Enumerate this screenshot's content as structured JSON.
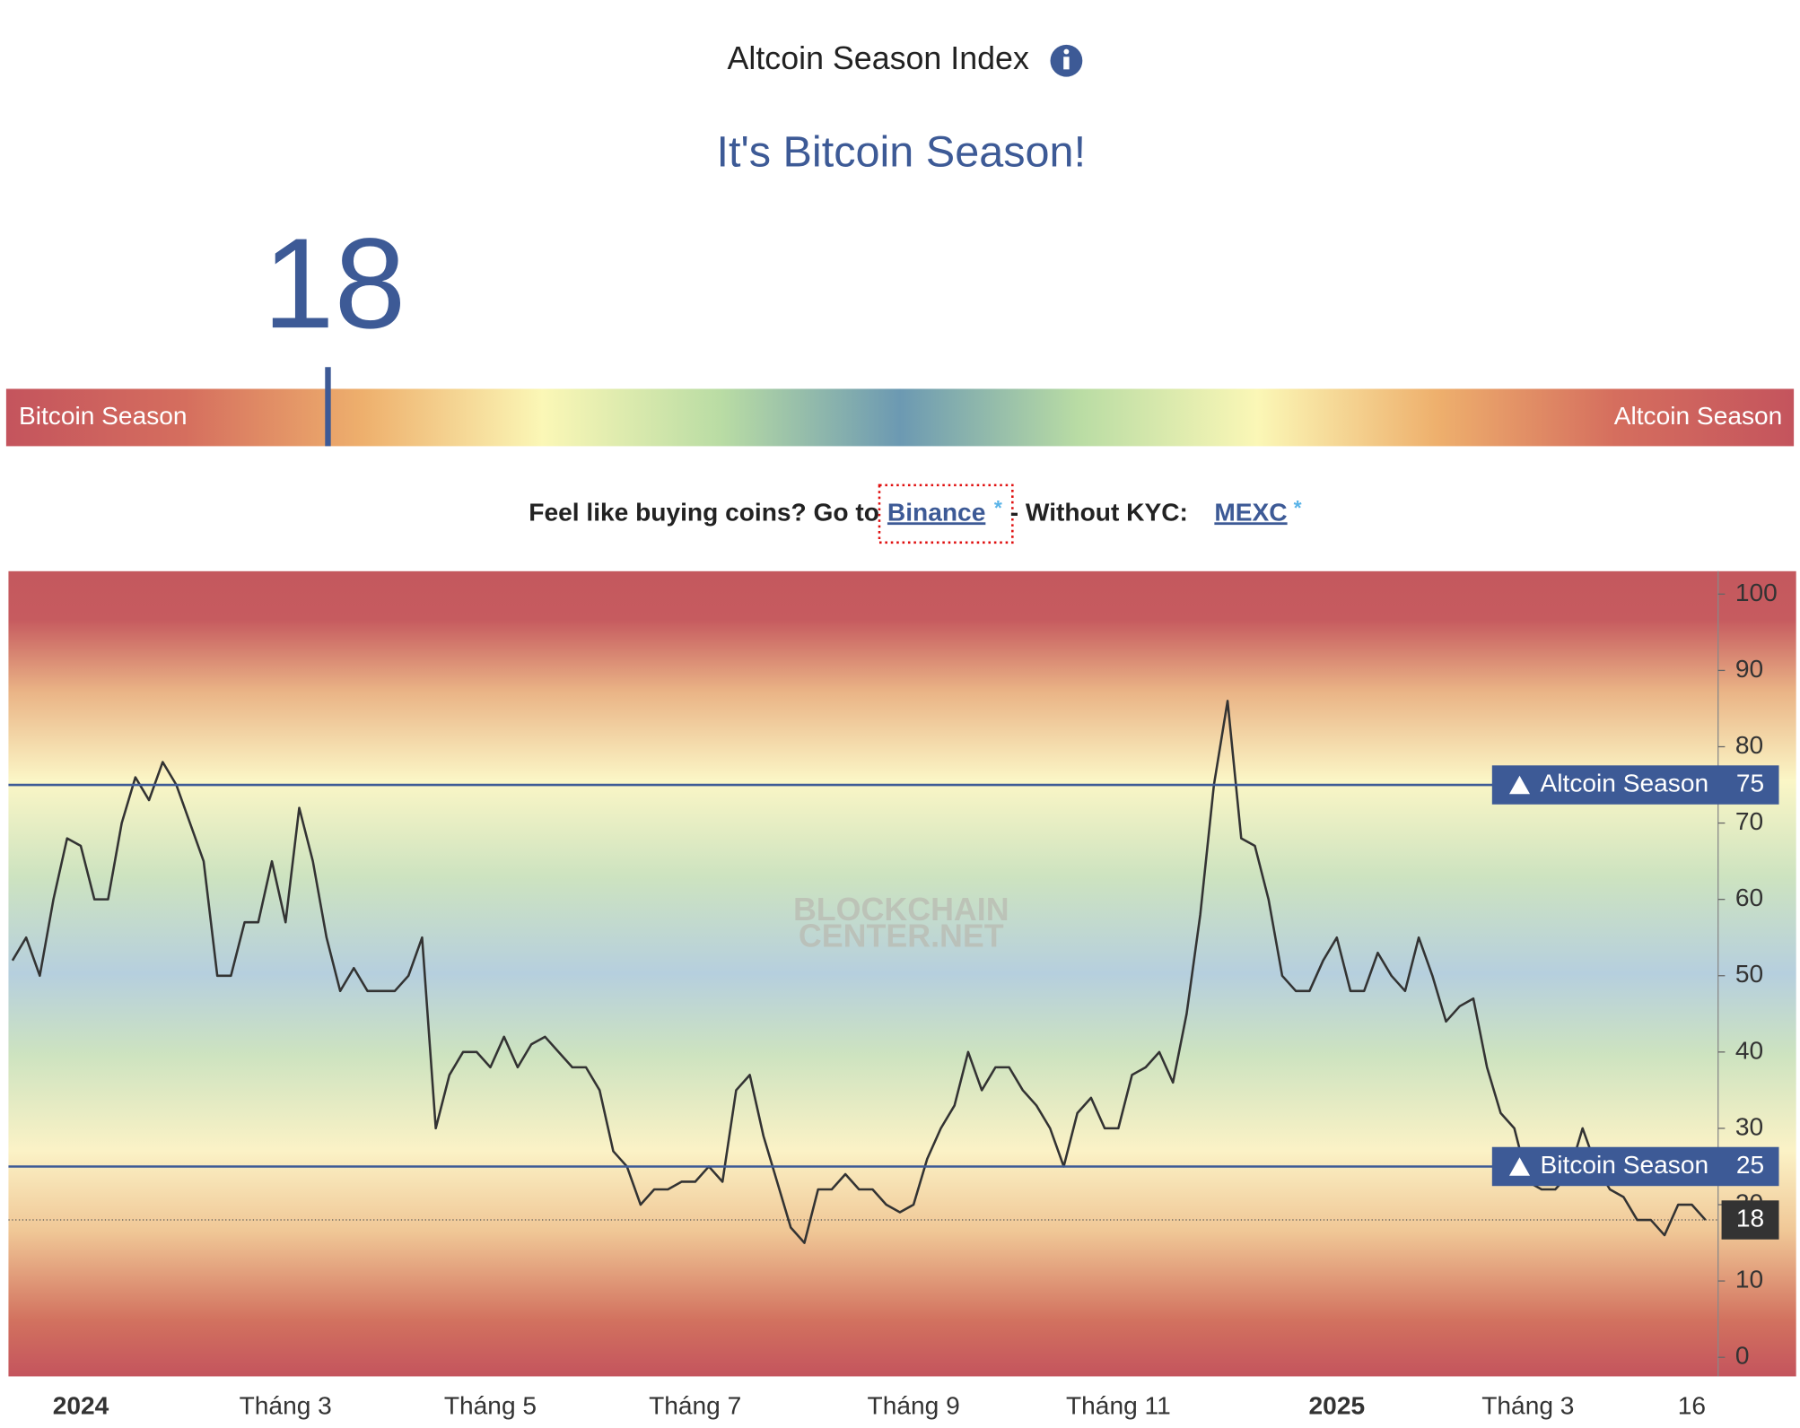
{
  "header": {
    "title": "Altcoin Season Index",
    "status": "It's Bitcoin Season!"
  },
  "gauge": {
    "value": 18,
    "range": [
      0,
      100
    ],
    "left_label": "Bitcoin Season",
    "right_label": "Altcoin Season"
  },
  "promo": {
    "text": "Feel like buying coins? Go to",
    "link1": "Binance",
    "mark1": "*",
    "middle": "- Without KYC:",
    "link2": "MEXC",
    "mark2": "*"
  },
  "chart_data": {
    "type": "line",
    "watermark": [
      "BLOCKCHAIN",
      "CENTER.NET"
    ],
    "categories": [
      null,
      null,
      null,
      null,
      null,
      "2024",
      null,
      null,
      null,
      null,
      null,
      null,
      null,
      null,
      null,
      null,
      null,
      null,
      null,
      null,
      "Tháng 3",
      null,
      null,
      null,
      null,
      null,
      null,
      null,
      null,
      null,
      null,
      null,
      null,
      null,
      null,
      "Tháng 5",
      null,
      null,
      null,
      null,
      null,
      null,
      null,
      null,
      null,
      null,
      null,
      null,
      null,
      null,
      "Tháng 7",
      null,
      null,
      null,
      null,
      null,
      null,
      null,
      null,
      null,
      null,
      null,
      null,
      null,
      null,
      null,
      "Tháng 9",
      null,
      null,
      null,
      null,
      null,
      null,
      null,
      null,
      null,
      null,
      null,
      null,
      null,
      null,
      "Tháng 11",
      null,
      null,
      null,
      null,
      null,
      null,
      null,
      null,
      null,
      null,
      null,
      null,
      null,
      null,
      null,
      "2025",
      null,
      null,
      null,
      null,
      null,
      null,
      null,
      null,
      null,
      null,
      null,
      null,
      null,
      "Tháng 3",
      null,
      null,
      null,
      null,
      null,
      null,
      null,
      null,
      null,
      null,
      null,
      "16",
      null
    ],
    "series": [
      {
        "color": "#333333",
        "values": [
          52,
          55,
          50,
          60,
          68,
          67,
          60,
          60,
          70,
          76,
          73,
          78,
          75,
          70,
          65,
          50,
          50,
          57,
          57,
          65,
          57,
          72,
          65,
          55,
          48,
          51,
          48,
          48,
          48,
          50,
          55,
          30,
          37,
          40,
          40,
          38,
          42,
          38,
          41,
          42,
          40,
          38,
          38,
          35,
          27,
          25,
          20,
          22,
          22,
          23,
          23,
          25,
          23,
          35,
          37,
          29,
          23,
          17,
          15,
          22,
          22,
          24,
          22,
          22,
          20,
          19,
          20,
          26,
          30,
          33,
          40,
          35,
          38,
          38,
          35,
          33,
          30,
          25,
          32,
          34,
          30,
          30,
          37,
          38,
          40,
          36,
          45,
          58,
          75,
          86,
          68,
          67,
          60,
          50,
          48,
          48,
          52,
          55,
          48,
          48,
          53,
          50,
          48,
          55,
          50,
          44,
          46,
          47,
          38,
          32,
          30,
          23,
          22,
          22,
          24,
          30,
          25,
          22,
          21,
          18,
          18,
          16,
          20,
          20,
          18
        ]
      }
    ],
    "ylim": [
      -2.5,
      103
    ],
    "yticks": [
      0,
      10,
      20,
      30,
      40,
      50,
      60,
      70,
      80,
      90,
      100
    ],
    "reference_lines": [
      {
        "label": "Altcoin Season",
        "value": 75,
        "color": "#3d5a96"
      },
      {
        "label": "Bitcoin Season",
        "value": 25,
        "color": "#3d5a96"
      }
    ],
    "current_value": 18
  }
}
